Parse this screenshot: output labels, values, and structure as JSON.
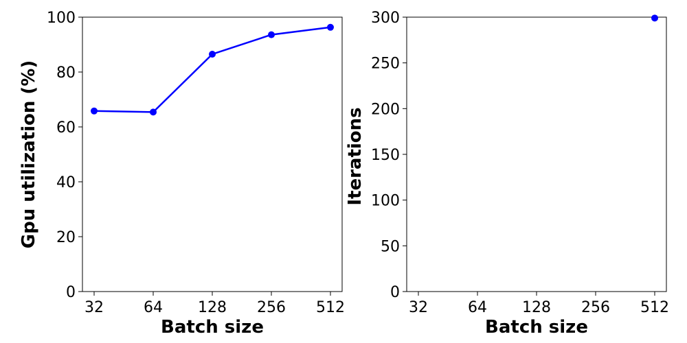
{
  "chart_data": [
    {
      "type": "line",
      "x_categories": [
        "32",
        "64",
        "128",
        "256",
        "512"
      ],
      "series": [
        {
          "values": [
            65.8,
            65.4,
            86.5,
            93.6,
            96.3
          ],
          "color": "#0000ff",
          "marker": "circle"
        }
      ],
      "xlabel": "Batch size",
      "ylabel": "Gpu utilization (%)",
      "ylim": [
        0,
        100
      ],
      "yticks": [
        0,
        20,
        40,
        60,
        80,
        100
      ],
      "ytick_labels": [
        "0",
        "20",
        "40",
        "60",
        "80",
        "100"
      ],
      "grid": false
    },
    {
      "type": "scatter",
      "x_categories": [
        "32",
        "64",
        "128",
        "256",
        "512"
      ],
      "series": [
        {
          "points": [
            {
              "x": "512",
              "y": 299
            }
          ],
          "color": "#0000ff",
          "marker": "circle"
        }
      ],
      "xlabel": "Batch size",
      "ylabel": "Iterations",
      "ylim": [
        0,
        300
      ],
      "yticks": [
        0,
        50,
        100,
        150,
        200,
        250,
        300
      ],
      "ytick_labels": [
        "0",
        "50",
        "100",
        "150",
        "200",
        "250",
        "300"
      ],
      "grid": false
    }
  ]
}
